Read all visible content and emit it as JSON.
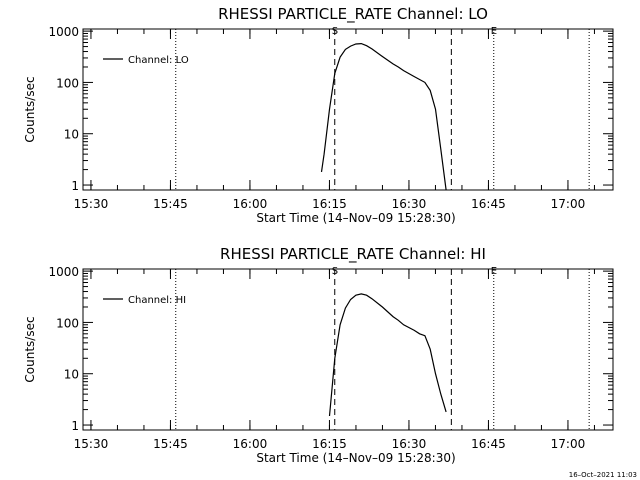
{
  "chart_data": [
    {
      "type": "line",
      "title": "RHESSI PARTICLE_RATE Channel: LO",
      "xlabel": "Start Time (14–Nov–09 15:28:30)",
      "ylabel": "Counts/sec",
      "y_scale": "log",
      "ylim": [
        0.8,
        1100
      ],
      "xlim": [
        "15:28:30",
        "17:08:30"
      ],
      "x_ticks": [
        "15:30",
        "15:45",
        "16:00",
        "16:15",
        "16:30",
        "16:45",
        "17:00"
      ],
      "y_ticks": [
        "1",
        "10",
        "100",
        "1000"
      ],
      "legend": {
        "position": "top-left",
        "label": "Channel: LO"
      },
      "vlines_dotted": [
        "15:46",
        "16:46",
        "17:04"
      ],
      "vlines_dashed": [
        "16:16",
        "16:38"
      ],
      "markers": [
        {
          "label": "S",
          "x": "16:16"
        },
        {
          "label": "E",
          "x": "16:46"
        }
      ],
      "series": [
        {
          "name": "Channel: LO",
          "x": [
            "16:13:30",
            "16:14",
            "16:15",
            "16:16",
            "16:17",
            "16:18",
            "16:19",
            "16:20",
            "16:21",
            "16:22",
            "16:23",
            "16:25",
            "16:27",
            "16:28",
            "16:29",
            "16:31",
            "16:33",
            "16:34",
            "16:35",
            "16:36",
            "16:37"
          ],
          "y": [
            1.8,
            4,
            30,
            150,
            310,
            440,
            510,
            560,
            570,
            520,
            450,
            320,
            230,
            200,
            170,
            130,
            100,
            70,
            30,
            5,
            0.8
          ]
        }
      ]
    },
    {
      "type": "line",
      "title": "RHESSI PARTICLE_RATE Channel: HI",
      "xlabel": "Start Time (14–Nov–09 15:28:30)",
      "ylabel": "Counts/sec",
      "y_scale": "log",
      "ylim": [
        0.8,
        1100
      ],
      "xlim": [
        "15:28:30",
        "17:08:30"
      ],
      "x_ticks": [
        "15:30",
        "15:45",
        "16:00",
        "16:15",
        "16:30",
        "16:45",
        "17:00"
      ],
      "y_ticks": [
        "1",
        "10",
        "100",
        "1000"
      ],
      "legend": {
        "position": "top-left",
        "label": "Channel: HI"
      },
      "vlines_dotted": [
        "15:46",
        "16:46",
        "17:04"
      ],
      "vlines_dashed": [
        "16:16",
        "16:38"
      ],
      "markers": [
        {
          "label": "S",
          "x": "16:16"
        },
        {
          "label": "E",
          "x": "16:46"
        }
      ],
      "series": [
        {
          "name": "Channel: HI",
          "x": [
            "16:15",
            "16:16",
            "16:17",
            "16:18",
            "16:19",
            "16:20",
            "16:21",
            "16:22",
            "16:23",
            "16:25",
            "16:27",
            "16:28",
            "16:29",
            "16:31",
            "16:32",
            "16:33",
            "16:34",
            "16:35",
            "16:36",
            "16:37"
          ],
          "y": [
            1.5,
            20,
            90,
            190,
            280,
            340,
            360,
            340,
            290,
            200,
            130,
            110,
            90,
            70,
            60,
            55,
            30,
            10,
            4,
            1.8
          ]
        }
      ]
    }
  ],
  "footer": {
    "timestamp": "16–Oct–2021 11:03"
  }
}
